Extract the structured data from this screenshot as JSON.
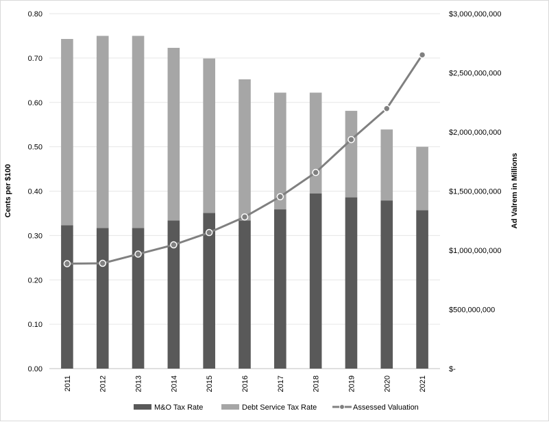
{
  "chart_data": {
    "type": "bar",
    "stacked": true,
    "categories": [
      "2011",
      "2012",
      "2013",
      "2014",
      "2015",
      "2016",
      "2017",
      "2018",
      "2019",
      "2020",
      "2021"
    ],
    "series": [
      {
        "name": "M&O Tax Rate",
        "type": "bar",
        "axis": "left",
        "color": "#595959",
        "values": [
          0.323,
          0.317,
          0.317,
          0.334,
          0.351,
          0.334,
          0.359,
          0.395,
          0.386,
          0.379,
          0.357
        ]
      },
      {
        "name": "Debt Service Tax Rate",
        "type": "bar",
        "axis": "left",
        "color": "#a6a6a6",
        "values": [
          0.42,
          0.433,
          0.433,
          0.389,
          0.348,
          0.318,
          0.263,
          0.227,
          0.195,
          0.16,
          0.143
        ]
      },
      {
        "name": "Assessed Valuation",
        "type": "line",
        "axis": "right",
        "color": "#808080",
        "values": [
          887000000,
          890000000,
          968000000,
          1046000000,
          1150000000,
          1282000000,
          1453000000,
          1658000000,
          1936000000,
          2198000000,
          2652000000
        ]
      }
    ],
    "ylabel": "Cents per $100",
    "y2label": "Ad Valrem in Millions",
    "ylim": [
      0,
      0.8
    ],
    "y2lim": [
      0,
      3000000000
    ],
    "yticks": [
      "0.00",
      "0.10",
      "0.20",
      "0.30",
      "0.40",
      "0.50",
      "0.60",
      "0.70",
      "0.80"
    ],
    "y2ticks": [
      "$-",
      "$500,000,000",
      "$1,000,000,000",
      "$1,500,000,000",
      "$2,000,000,000",
      "$2,500,000,000",
      "$3,000,000,000"
    ],
    "grid": true,
    "legend_position": "bottom"
  }
}
